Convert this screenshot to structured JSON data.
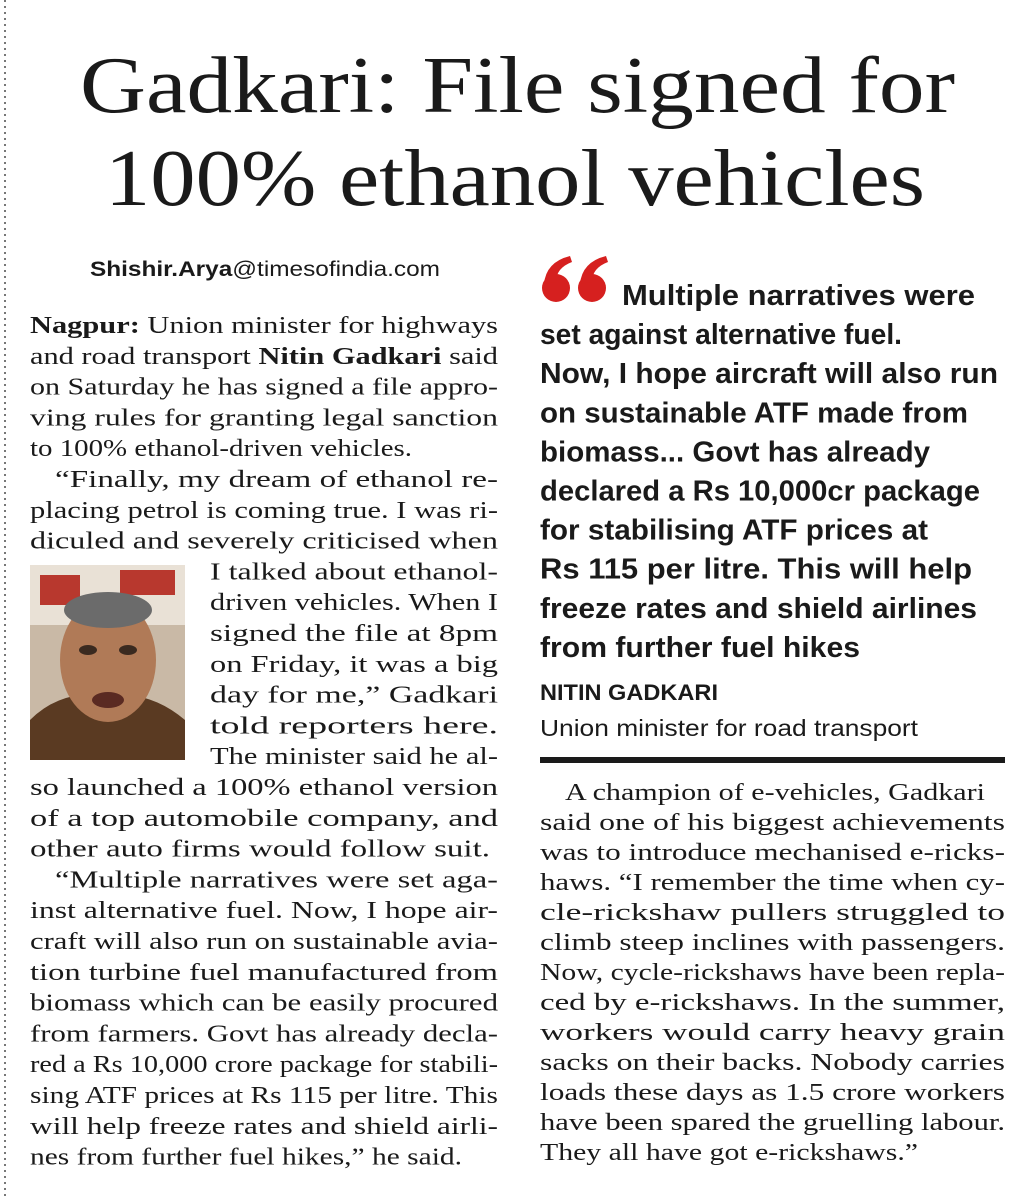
{
  "headline": [
    "Gadkari: File signed for",
    "100% ethanol vehicles"
  ],
  "byline": [
    {
      "text": "Shishir.Arya",
      "bold": true
    },
    "@timesofindia.com"
  ],
  "left_column": {
    "lines": [
      [
        {
          "text": "Nagpur:",
          "bold": true
        },
        " Union minister for highways"
      ],
      [
        "and road transport ",
        {
          "text": "Nitin Gadkari",
          "bold": true
        },
        " said"
      ],
      "on Saturday he has signed a file appro-",
      "ving rules for granting legal sanction",
      "to 100% ethanol-driven vehicles.",
      "“Finally, my dream of ethanol re-",
      "placing petrol is coming true. I was ri-",
      "diculed and severely criticised when",
      "I talked about ethanol-",
      "driven vehicles. When I",
      "signed the file at 8pm",
      "on Friday, it was a big",
      "day for me,” Gadkari",
      "told reporters here.",
      "The minister said he al-",
      "so launched a 100% ethanol version",
      "of a top automobile company, and",
      "other auto firms would follow suit.",
      "“Multiple narratives were set aga-",
      "inst alternative fuel. Now, I hope air-",
      "craft will also run on sustainable avia-",
      "tion turbine fuel manufactured from",
      "biomass which can be easily procured",
      "from farmers. Govt has already decla-",
      "red a Rs 10,000 crore package for stabili-",
      "sing ATF prices at Rs 115 per litre. This",
      "will help freeze rates and shield airli-",
      "nes from further fuel hikes,” he said."
    ]
  },
  "quote": {
    "lines": [
      "Multiple narratives were",
      "set against alternative fuel.",
      "Now, I hope aircraft will also run",
      "on sustainable ATF made from",
      "biomass... Govt has already",
      "declared a Rs 10,000cr package",
      "for stabilising ATF prices at",
      "Rs 115 per litre. This will help",
      "freeze rates and shield airlines",
      "from further fuel hikes"
    ],
    "name": "NITIN GADKARI",
    "role": "Union minister for road transport"
  },
  "right_column": {
    "lines": [
      "A champion of e-vehicles, Gadkari",
      "said one of his biggest achievements",
      "was to introduce mechanised e-ricks-",
      "haws. “I remember the time when cy-",
      "cle-rickshaw pullers struggled to",
      "climb steep inclines with passengers.",
      "Now, cycle-rickshaws have been repla-",
      "ced by e-rickshaws. In the summer,",
      "workers would carry heavy grain",
      "sacks on their backs. Nobody carries",
      "loads these days as 1.5 crore workers",
      "have been spared the gruelling labour.",
      "They all have got e-rickshaws.”"
    ]
  }
}
